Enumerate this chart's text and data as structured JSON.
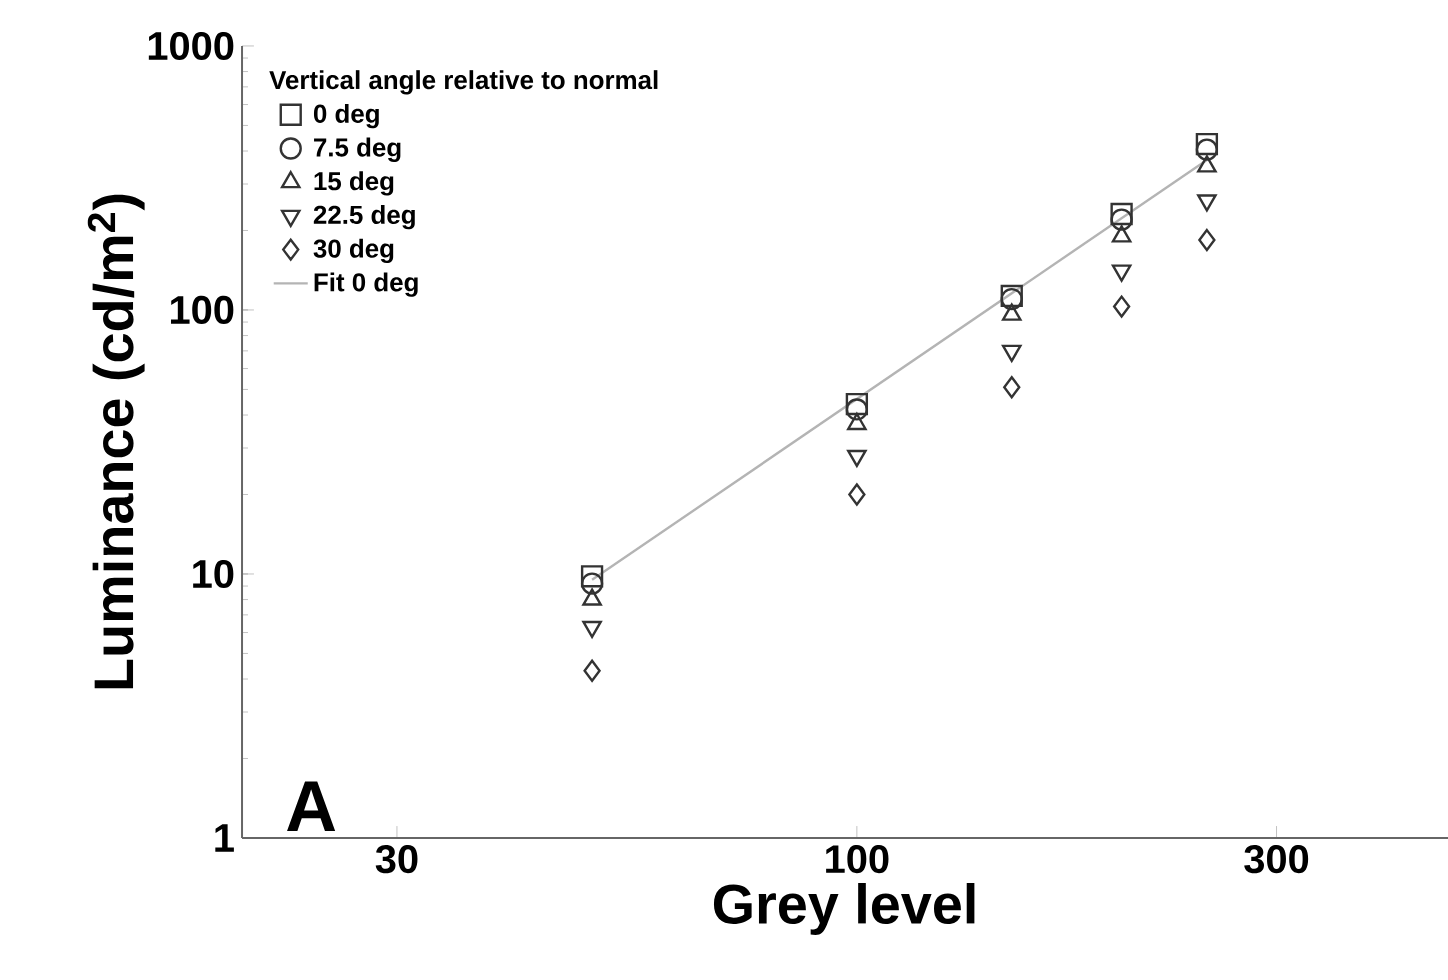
{
  "chart_data": {
    "type": "scatter",
    "xlabel": "Grey level",
    "ylabel": "Luminance (cd/m$^{2}$)",
    "legend_title": "Vertical angle relative to normal",
    "x": [
      50,
      100,
      150,
      200,
      250
    ],
    "series": [
      {
        "name": "0 deg",
        "color": "#333333",
        "marker": "square",
        "values": [
          9.8,
          44,
          113,
          231,
          425
        ]
      },
      {
        "name": "7.5 deg",
        "color": "#333333",
        "marker": "circle",
        "values": [
          9.2,
          42,
          110,
          220,
          405
        ]
      },
      {
        "name": "15 deg",
        "color": "#333333",
        "marker": "triangle",
        "values": [
          8.0,
          37,
          96,
          190,
          350
        ]
      },
      {
        "name": "22.5 deg",
        "color": "#333333",
        "marker": "triangle_down",
        "values": [
          6.3,
          28,
          70,
          141,
          260
        ]
      },
      {
        "name": "30 deg",
        "color": "#333333",
        "marker": "diamond",
        "values": [
          4.3,
          20,
          51,
          103,
          184
        ]
      },
      {
        "name": "Fit 0 deg",
        "type": "line",
        "color": "#b4b4b4",
        "marker": "none",
        "x": [
          50,
          250
        ],
        "values": [
          9.5,
          370
        ]
      }
    ],
    "log": "xy",
    "grid": false,
    "legend": "top left",
    "xlim": [
      20,
      470
    ],
    "ylim": [
      1,
      1000
    ],
    "xticks": [
      30,
      100,
      300
    ],
    "yticks": [
      1,
      10,
      100,
      1000
    ],
    "annotations": [
      "A"
    ]
  }
}
